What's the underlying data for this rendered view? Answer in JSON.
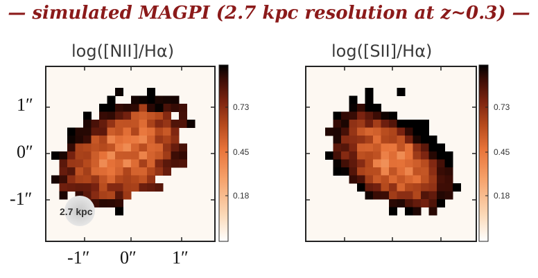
{
  "banner": "— simulated MAGPI (2.7 kpc resolution at z~0.3) —",
  "panels": [
    {
      "title": "log([NII]/Hα)",
      "beam_label": "2.7 kpc",
      "y_ticks": [
        "1″",
        "0″",
        "-1″"
      ],
      "x_ticks": [
        "-1″",
        "0″",
        "1″"
      ],
      "colorbar_ticks": [
        "0.73",
        "0.45",
        "0.18"
      ]
    },
    {
      "title": "log([SII]/Hα)",
      "colorbar_ticks": [
        "0.73",
        "0.45",
        "0.18"
      ]
    }
  ],
  "colors": {
    "banner": "#8b1a1a",
    "cmap": [
      "#ffffff",
      "#fbd9b8",
      "#f6a36c",
      "#e8743a",
      "#b64a1d",
      "#7a2310",
      "#3a0c05",
      "#000000"
    ]
  }
}
